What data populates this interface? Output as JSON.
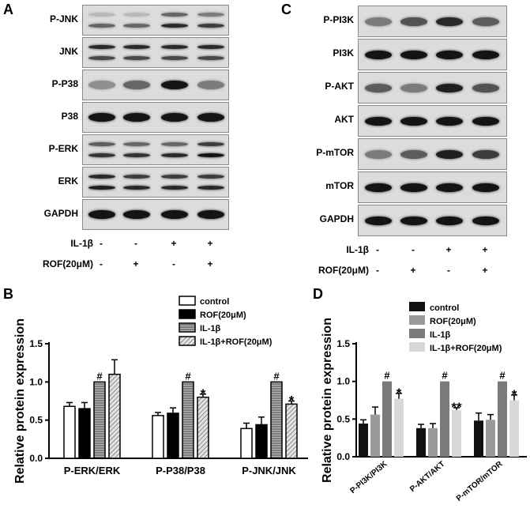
{
  "panels": {
    "A": "A",
    "B": "B",
    "C": "C",
    "D": "D"
  },
  "blot_A": {
    "rows": [
      {
        "label": "P-JNK",
        "bands": [
          [
            0.15,
            0.55
          ],
          [
            0.15,
            0.55
          ],
          [
            0.55,
            0.85
          ],
          [
            0.45,
            0.75
          ]
        ]
      },
      {
        "label": "JNK",
        "bands": [
          [
            0.85,
            0.7
          ],
          [
            0.85,
            0.7
          ],
          [
            0.85,
            0.7
          ],
          [
            0.85,
            0.7
          ]
        ]
      },
      {
        "label": "P-P38",
        "bands": [
          [
            0.35
          ],
          [
            0.55
          ],
          [
            0.95
          ],
          [
            0.45
          ]
        ]
      },
      {
        "label": "P38",
        "bands": [
          [
            0.95
          ],
          [
            0.95
          ],
          [
            0.95
          ],
          [
            0.95
          ]
        ]
      },
      {
        "label": "P-ERK",
        "bands": [
          [
            0.6,
            0.8
          ],
          [
            0.55,
            0.8
          ],
          [
            0.55,
            0.85
          ],
          [
            0.75,
            0.95
          ]
        ]
      },
      {
        "label": "ERK",
        "bands": [
          [
            0.85,
            0.9
          ],
          [
            0.75,
            0.85
          ],
          [
            0.75,
            0.85
          ],
          [
            0.75,
            0.85
          ]
        ]
      },
      {
        "label": "GAPDH",
        "bands": [
          [
            0.95
          ],
          [
            0.95
          ],
          [
            0.95
          ],
          [
            0.95
          ]
        ]
      }
    ],
    "conditions": [
      {
        "label": "IL-1β",
        "signs": [
          "-",
          "-",
          "+",
          "+"
        ]
      },
      {
        "label": "ROF(20μM)",
        "signs": [
          "-",
          "+",
          "-",
          "+"
        ]
      }
    ]
  },
  "blot_C": {
    "rows": [
      {
        "label": "P-PI3K",
        "bands": [
          [
            0.45
          ],
          [
            0.65
          ],
          [
            0.85
          ],
          [
            0.6
          ]
        ]
      },
      {
        "label": "PI3K",
        "bands": [
          [
            0.95
          ],
          [
            0.95
          ],
          [
            0.95
          ],
          [
            0.95
          ]
        ]
      },
      {
        "label": "P-AKT",
        "bands": [
          [
            0.6
          ],
          [
            0.45
          ],
          [
            0.9
          ],
          [
            0.65
          ]
        ]
      },
      {
        "label": "AKT",
        "bands": [
          [
            0.95
          ],
          [
            0.95
          ],
          [
            0.95
          ],
          [
            0.95
          ]
        ]
      },
      {
        "label": "P-mTOR",
        "bands": [
          [
            0.45
          ],
          [
            0.6
          ],
          [
            0.9
          ],
          [
            0.75
          ]
        ]
      },
      {
        "label": "mTOR",
        "bands": [
          [
            0.95
          ],
          [
            0.95
          ],
          [
            0.95
          ],
          [
            0.95
          ]
        ]
      },
      {
        "label": "GAPDH",
        "bands": [
          [
            0.95
          ],
          [
            0.95
          ],
          [
            0.95
          ],
          [
            0.95
          ]
        ]
      }
    ],
    "conditions": [
      {
        "label": "IL-1β",
        "signs": [
          "-",
          "-",
          "+",
          "+"
        ]
      },
      {
        "label": "ROF(20μM)",
        "signs": [
          "-",
          "+",
          "-",
          "+"
        ]
      }
    ]
  },
  "chart_data": [
    {
      "panel": "B",
      "type": "bar",
      "ylabel": "Relative protein expression",
      "ylim": [
        0,
        1.5
      ],
      "yticks": [
        "0.0",
        "0.5",
        "1.0",
        "1.5"
      ],
      "categories": [
        "P-ERK/ERK",
        "P-P38/P38",
        "P-JNK/JNK"
      ],
      "legend_position": "top-right",
      "series": [
        {
          "name": "control",
          "values": [
            0.68,
            0.56,
            0.39
          ],
          "errors": [
            0.05,
            0.04,
            0.07
          ],
          "marks": [
            "",
            "",
            ""
          ],
          "color": "#ffffff",
          "pattern": "none"
        },
        {
          "name": "ROF(20μM)",
          "values": [
            0.65,
            0.59,
            0.44
          ],
          "errors": [
            0.08,
            0.07,
            0.1
          ],
          "marks": [
            "",
            "",
            ""
          ],
          "color": "#000000",
          "pattern": "none"
        },
        {
          "name": "IL-1β",
          "values": [
            1.0,
            1.0,
            1.0
          ],
          "errors": [
            0,
            0,
            0
          ],
          "marks": [
            "#",
            "#",
            "#"
          ],
          "color": "#9a9a9a",
          "pattern": "hlines"
        },
        {
          "name": "IL-1β+ROF(20μM)",
          "values": [
            1.1,
            0.8,
            0.71
          ],
          "errors": [
            0.19,
            0.04,
            0.04
          ],
          "marks": [
            "",
            "*",
            "*"
          ],
          "color": "#cfcfcf",
          "pattern": "diag"
        }
      ]
    },
    {
      "panel": "D",
      "type": "bar",
      "ylabel": "Relative protein expression",
      "ylim": [
        0,
        1.5
      ],
      "yticks": [
        "0.0",
        "0.5",
        "1.0",
        "1.5"
      ],
      "categories": [
        "P-PI3K/PI3K",
        "P-AKT/AKT",
        "P-mTOR/mTOR"
      ],
      "legend_position": "top-right",
      "series": [
        {
          "name": "control",
          "values": [
            0.44,
            0.38,
            0.48
          ],
          "errors": [
            0.05,
            0.05,
            0.1
          ],
          "marks": [
            "",
            "",
            ""
          ],
          "color": "#111111",
          "pattern": "none"
        },
        {
          "name": "ROF(20μM)",
          "values": [
            0.56,
            0.38,
            0.49
          ],
          "errors": [
            0.1,
            0.06,
            0.07
          ],
          "marks": [
            "",
            "",
            ""
          ],
          "color": "#9a9a9a",
          "pattern": "none"
        },
        {
          "name": "IL-1β",
          "values": [
            1.0,
            1.0,
            1.0
          ],
          "errors": [
            0,
            0,
            0
          ],
          "marks": [
            "#",
            "#",
            "#"
          ],
          "color": "#7a7a7a",
          "pattern": "none"
        },
        {
          "name": "IL-1β+ROF(20μM)",
          "values": [
            0.77,
            0.62,
            0.75
          ],
          "errors": [
            0.07,
            0.03,
            0.07
          ],
          "marks": [
            "*",
            "**",
            "*"
          ],
          "color": "#d8d8d8",
          "pattern": "none"
        }
      ]
    }
  ]
}
